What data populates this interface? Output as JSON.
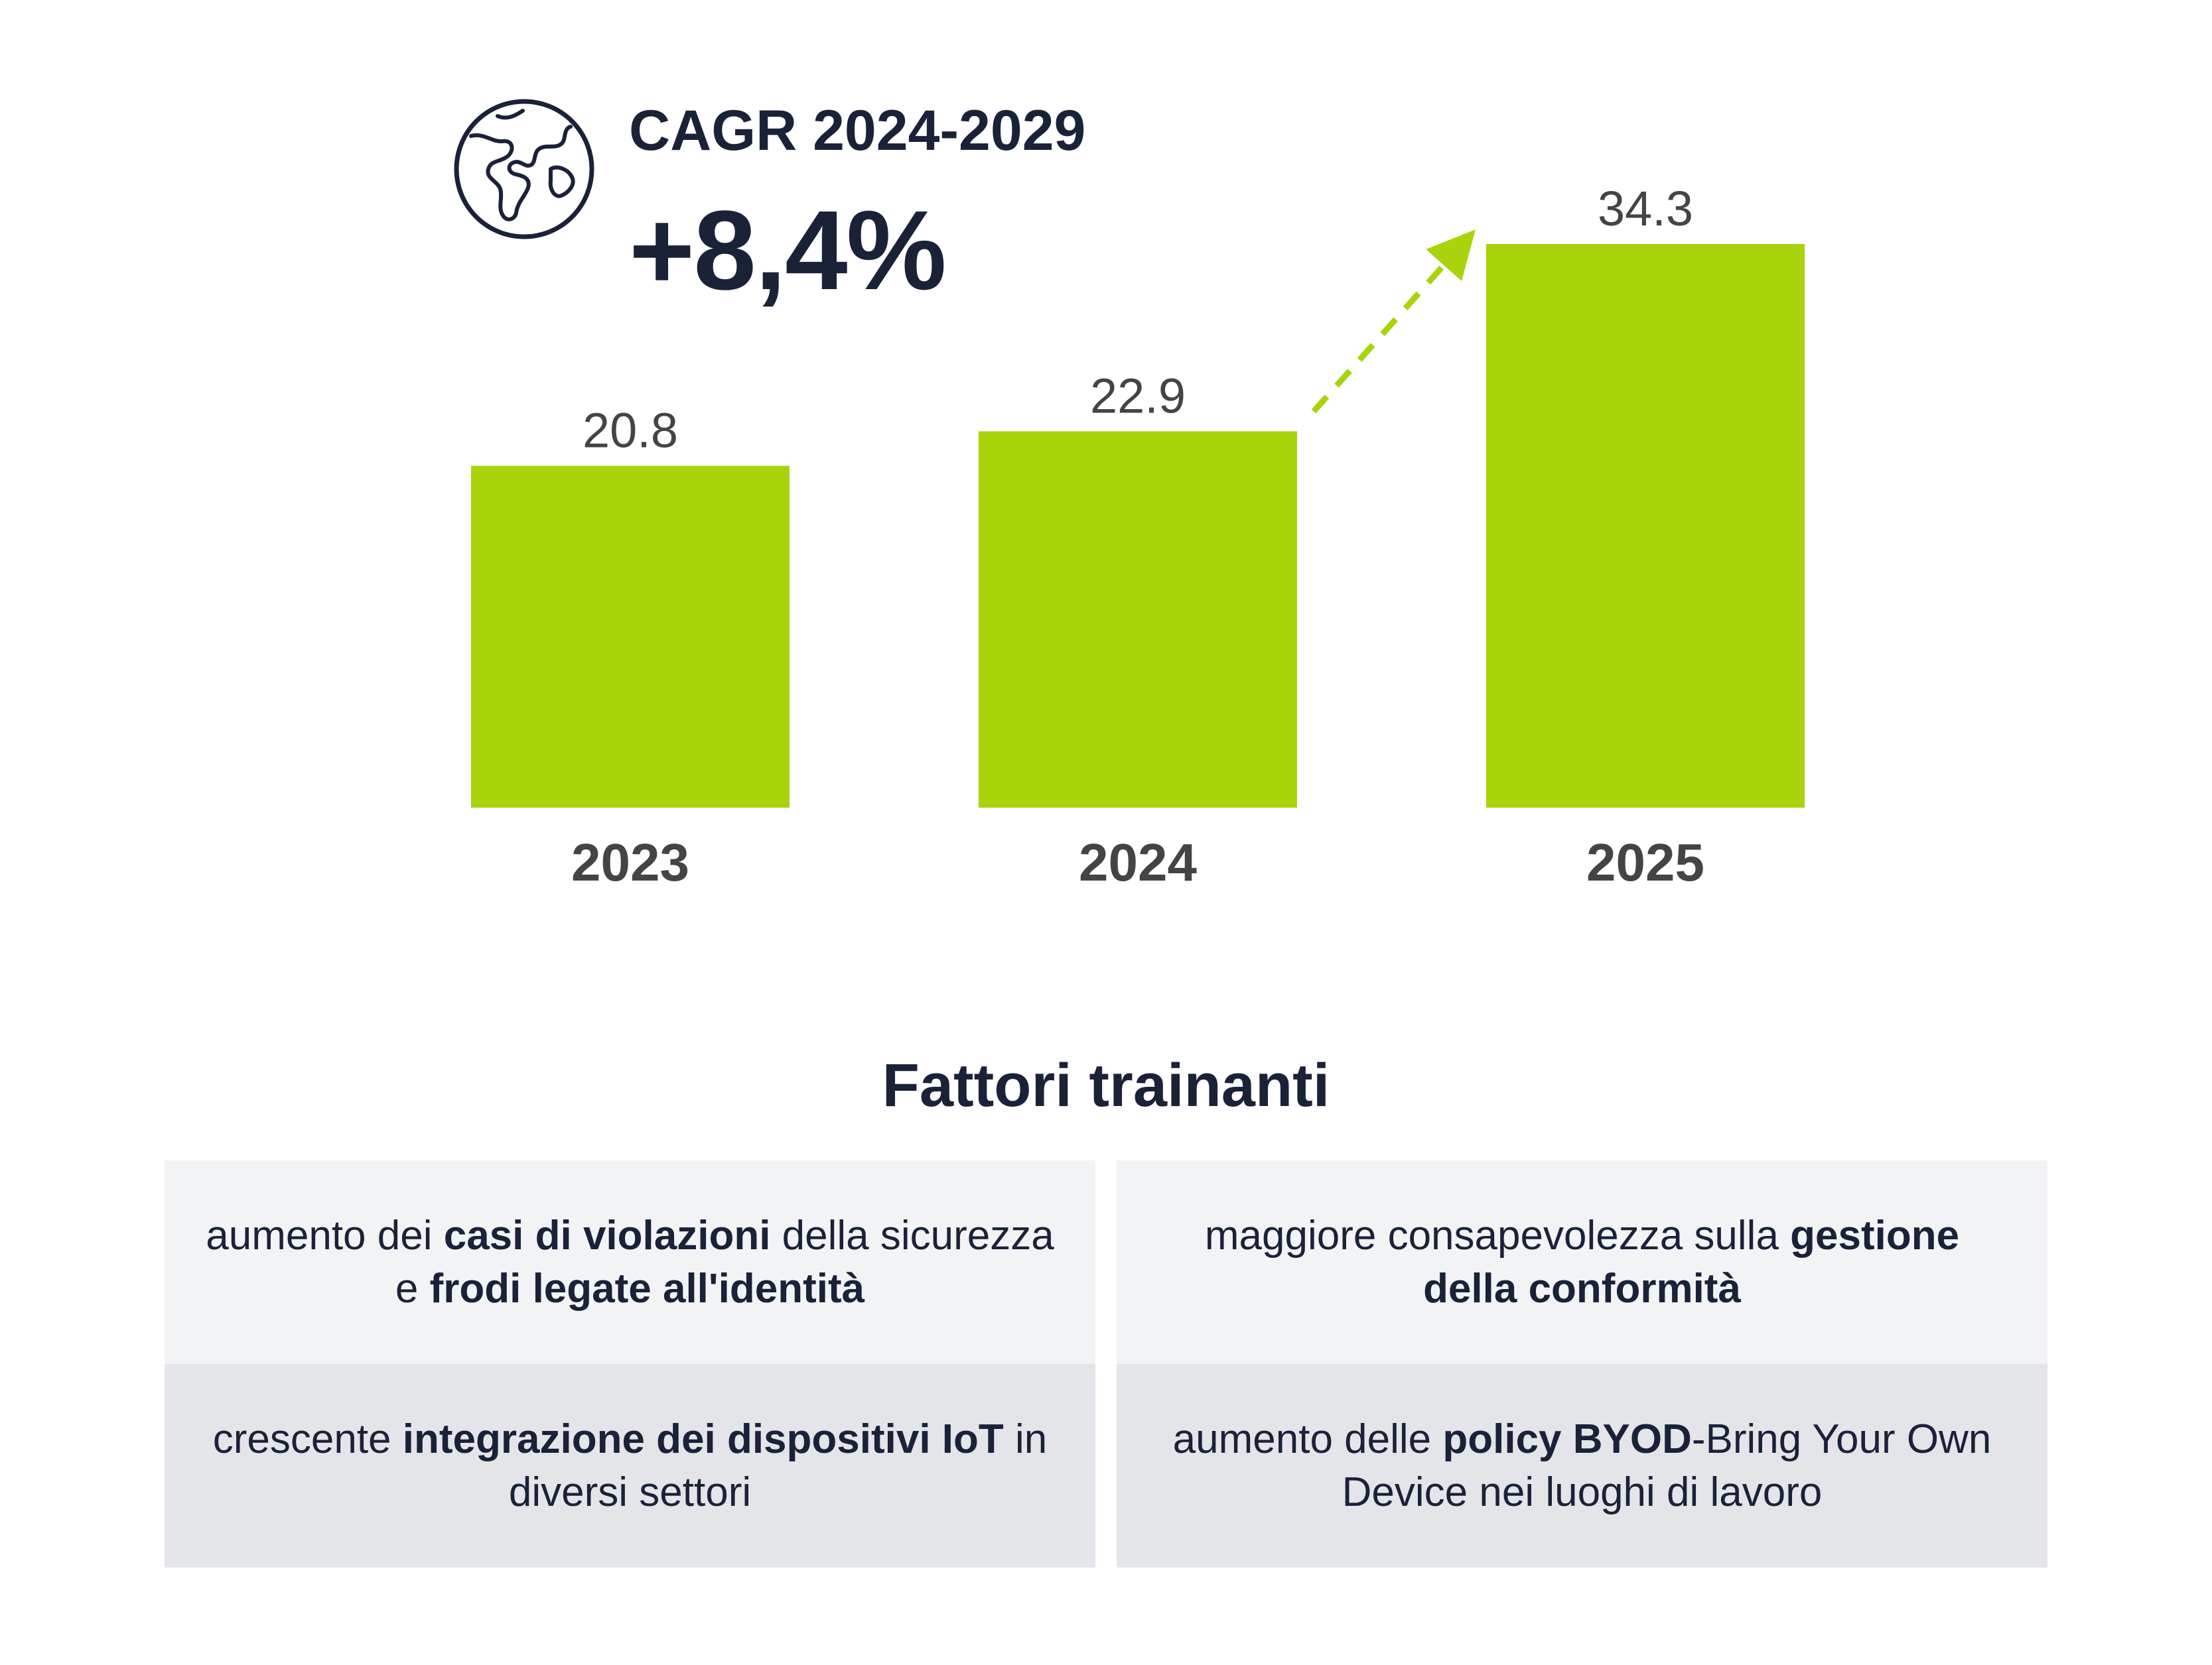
{
  "header": {
    "cagr_title": "CAGR 2024-2029",
    "cagr_value": "+8,4%",
    "icon": "globe-icon"
  },
  "chart_data": {
    "type": "bar",
    "categories": [
      "2023",
      "2024",
      "2025"
    ],
    "values": [
      20.8,
      22.9,
      34.3
    ],
    "value_labels": [
      "20.8",
      "22.9",
      "34.3"
    ],
    "ylim": [
      0,
      34.3
    ],
    "bar_color": "#a9d30a",
    "arrow": {
      "from": "2024",
      "to": "2025",
      "style": "dashed",
      "color": "#a9d30a"
    },
    "grid": false,
    "xlabel": "",
    "ylabel": ""
  },
  "factors": {
    "title": "Fattori trainanti",
    "items": [
      {
        "segments": [
          {
            "text": "aumento dei ",
            "bold": false
          },
          {
            "text": "casi di violazioni",
            "bold": true
          },
          {
            "text": " della sicurezza e ",
            "bold": false
          },
          {
            "text": "frodi legate all'identità",
            "bold": true
          }
        ]
      },
      {
        "segments": [
          {
            "text": "maggiore consapevolezza sulla ",
            "bold": false
          },
          {
            "text": "gestione della conformità",
            "bold": true
          }
        ]
      },
      {
        "segments": [
          {
            "text": "crescente ",
            "bold": false
          },
          {
            "text": "integrazione dei dispositivi IoT",
            "bold": true
          },
          {
            "text": " in diversi settori",
            "bold": false
          }
        ]
      },
      {
        "segments": [
          {
            "text": "aumento delle ",
            "bold": false
          },
          {
            "text": "policy BYOD",
            "bold": true
          },
          {
            "text": "-Bring Your Own Device nei luoghi di lavoro",
            "bold": false
          }
        ]
      }
    ]
  },
  "colors": {
    "text_dark": "#1a2238",
    "label_grey": "#444444",
    "cell_light": "#f2f3f5",
    "cell_dark": "#e4e5e9"
  }
}
